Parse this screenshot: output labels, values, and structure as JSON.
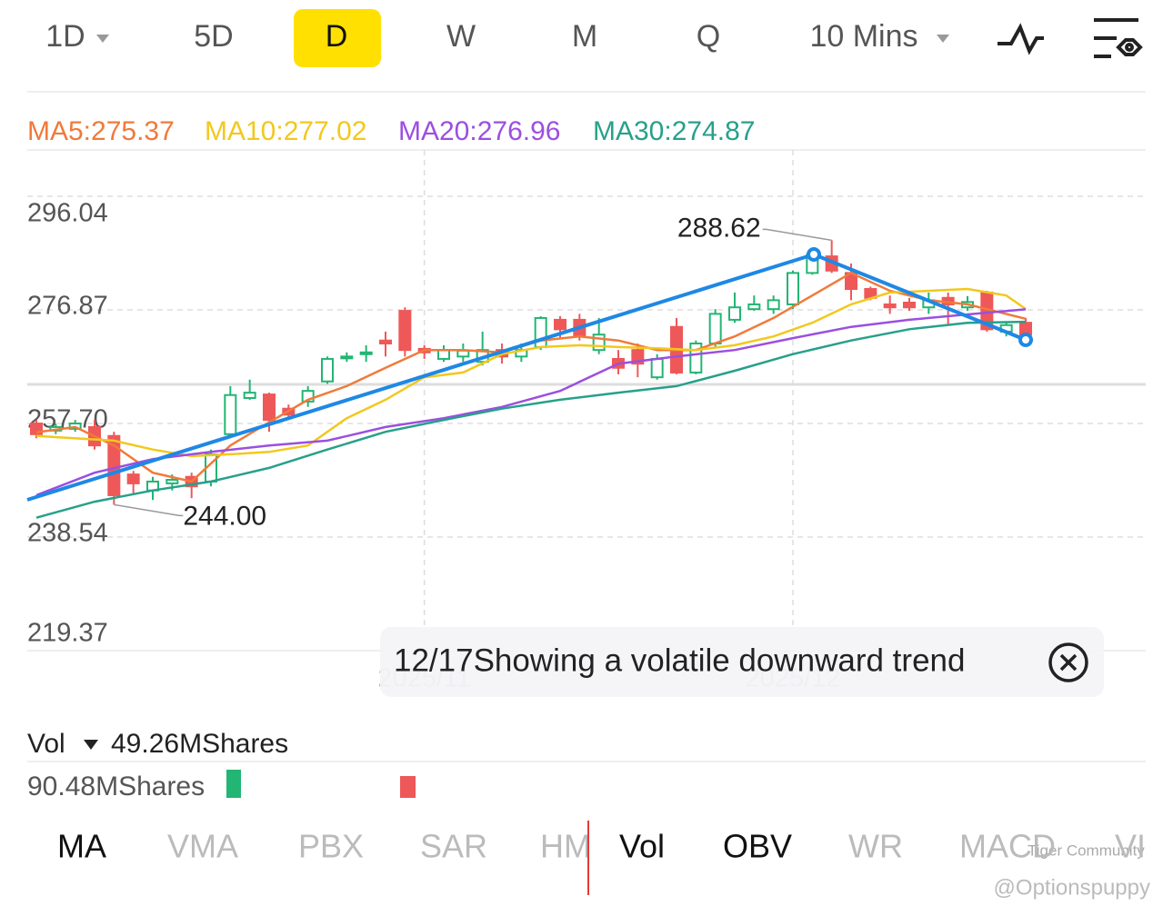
{
  "tabs": [
    "1D",
    "5D",
    "D",
    "W",
    "M",
    "Q",
    "10 Mins"
  ],
  "active_tab": "D",
  "chart_data": {
    "type": "candlestick",
    "legend": [
      "MA5:275.37",
      "MA10:277.02",
      "MA20:276.96",
      "MA30:274.87"
    ],
    "up_color": "#22b573",
    "down_color": "#ee5858",
    "ylim": [
      219.37,
      303.86
    ],
    "yticks": [
      296.04,
      276.87,
      {
        "value": 257.7,
        "label": "257.70"
      },
      238.54,
      219.37
    ],
    "categories": [
      null,
      null,
      null,
      null,
      null,
      null,
      null,
      null,
      null,
      null,
      null,
      null,
      null,
      null,
      null,
      null,
      null,
      null,
      null,
      null,
      "2025/11",
      null,
      null,
      null,
      null,
      null,
      null,
      null,
      null,
      null,
      null,
      null,
      null,
      null,
      null,
      null,
      null,
      null,
      null,
      "2025/12",
      null,
      null,
      null,
      null,
      null,
      null,
      null,
      null,
      null,
      null,
      null,
      null
    ],
    "ohlc": [
      [
        257.7,
        258.3,
        255.2,
        255.9
      ],
      [
        256.5,
        257.7,
        255.9,
        257.1
      ],
      [
        256.8,
        258.3,
        256.3,
        257.7
      ],
      [
        257.1,
        258.3,
        253.3,
        254.0
      ],
      [
        255.6,
        256.3,
        244.0,
        245.6
      ],
      [
        249.1,
        249.7,
        245.6,
        247.6
      ],
      [
        246.4,
        248.7,
        244.8,
        247.9
      ],
      [
        247.6,
        249.1,
        246.4,
        248.2
      ],
      [
        248.7,
        249.4,
        245.1,
        247.1
      ],
      [
        247.9,
        253.3,
        247.1,
        252.5
      ],
      [
        255.9,
        264.0,
        255.6,
        262.5
      ],
      [
        262.0,
        265.1,
        261.7,
        262.9
      ],
      [
        262.6,
        262.9,
        256.3,
        258.3
      ],
      [
        260.2,
        260.9,
        258.3,
        259.2
      ],
      [
        261.4,
        264.0,
        260.5,
        263.2
      ],
      [
        264.8,
        269.0,
        264.4,
        268.6
      ],
      [
        268.7,
        269.7,
        268.1,
        269.0
      ],
      [
        269.4,
        270.9,
        268.1,
        269.7
      ],
      [
        271.7,
        273.2,
        269.0,
        271.2
      ],
      [
        276.7,
        277.3,
        269.0,
        270.1
      ],
      [
        270.3,
        270.9,
        268.6,
        269.7
      ],
      [
        268.6,
        270.9,
        268.1,
        270.1
      ],
      [
        269.0,
        271.2,
        268.1,
        270.0
      ],
      [
        268.1,
        273.2,
        267.5,
        270.1
      ],
      [
        270.1,
        271.2,
        267.8,
        269.0
      ],
      [
        269.0,
        271.2,
        268.1,
        270.1
      ],
      [
        270.6,
        275.8,
        270.1,
        275.5
      ],
      [
        275.2,
        275.8,
        272.1,
        273.6
      ],
      [
        275.2,
        276.2,
        271.7,
        272.4
      ],
      [
        270.1,
        275.5,
        269.4,
        272.7
      ],
      [
        268.6,
        270.1,
        266.0,
        267.1
      ],
      [
        270.1,
        271.2,
        265.5,
        267.8
      ],
      [
        265.5,
        269.4,
        265.1,
        268.6
      ],
      [
        274.0,
        275.5,
        266.0,
        266.3
      ],
      [
        266.3,
        271.7,
        266.0,
        271.2
      ],
      [
        271.2,
        277.0,
        270.6,
        276.2
      ],
      [
        275.2,
        279.8,
        274.7,
        277.3
      ],
      [
        277.0,
        279.3,
        276.7,
        277.8
      ],
      [
        277.0,
        279.3,
        276.2,
        278.5
      ],
      [
        277.8,
        283.5,
        277.0,
        283.1
      ],
      [
        283.1,
        286.5,
        282.8,
        286.2
      ],
      [
        285.9,
        288.62,
        283.1,
        283.5
      ],
      [
        283.1,
        284.7,
        278.5,
        280.4
      ],
      [
        280.4,
        280.8,
        278.5,
        278.9
      ],
      [
        277.8,
        279.3,
        276.2,
        277.3
      ],
      [
        278.1,
        278.9,
        276.7,
        277.3
      ],
      [
        277.3,
        279.8,
        276.2,
        278.5
      ],
      [
        278.9,
        279.8,
        274.3,
        277.8
      ],
      [
        277.3,
        279.2,
        276.7,
        278.2
      ],
      [
        279.8,
        280.1,
        273.2,
        273.6
      ],
      [
        273.2,
        274.7,
        272.4,
        274.3
      ],
      [
        274.7,
        275.5,
        272.1,
        272.7
      ]
    ],
    "series": [
      {
        "name": "MA5",
        "color": "#f07a3a",
        "x": [
          0,
          2,
          4,
          6,
          8,
          10,
          12,
          14,
          16,
          18,
          20,
          22,
          24,
          26,
          28,
          30,
          32,
          34,
          36,
          38,
          40,
          42,
          44,
          46,
          48,
          51
        ],
        "values": [
          256.2,
          257.1,
          254.0,
          249.4,
          247.9,
          254.0,
          257.9,
          261.7,
          264.0,
          267.1,
          270.1,
          270.1,
          269.7,
          271.7,
          272.4,
          271.7,
          270.1,
          270.1,
          272.4,
          275.5,
          279.3,
          283.1,
          280.1,
          278.5,
          277.8,
          275.37
        ]
      },
      {
        "name": "MA10",
        "color": "#f2c81e",
        "x": [
          0,
          4,
          6,
          8,
          10,
          12,
          14,
          16,
          18,
          20,
          22,
          24,
          26,
          28,
          30,
          32,
          34,
          36,
          38,
          40,
          42,
          44,
          46,
          48,
          50,
          51
        ],
        "values": [
          255.6,
          254.8,
          253.3,
          252.2,
          252.5,
          252.9,
          254.0,
          258.6,
          261.7,
          265.5,
          266.3,
          269.4,
          270.6,
          270.9,
          270.6,
          270.4,
          270.1,
          270.9,
          272.4,
          274.7,
          277.8,
          279.8,
          280.1,
          280.4,
          279.3,
          277.02
        ]
      },
      {
        "name": "MA20",
        "color": "#9b4fe0",
        "x": [
          0,
          3,
          6,
          9,
          12,
          15,
          18,
          21,
          24,
          27,
          30,
          33,
          36,
          39,
          42,
          45,
          48,
          51
        ],
        "values": [
          245.6,
          249.4,
          251.7,
          252.9,
          254.0,
          254.8,
          257.1,
          258.6,
          260.5,
          263.2,
          267.8,
          269.0,
          270.1,
          272.1,
          274.0,
          275.2,
          276.1,
          276.96
        ]
      },
      {
        "name": "MA30",
        "color": "#27a08a",
        "x": [
          0,
          3,
          6,
          9,
          12,
          15,
          18,
          21,
          24,
          27,
          30,
          33,
          36,
          39,
          42,
          45,
          48,
          51
        ],
        "values": [
          241.8,
          244.5,
          246.4,
          247.9,
          250.2,
          253.3,
          256.3,
          258.3,
          260.2,
          261.7,
          262.9,
          264.0,
          266.6,
          269.4,
          271.7,
          273.6,
          274.7,
          274.87
        ]
      }
    ],
    "max_label": 288.62,
    "min_label": {
      "value": 244,
      "label": "244.00"
    },
    "tooltip": "12/17Showing a volatile downward trend"
  },
  "volume": {
    "label": "Vol",
    "current": "49.26MShares",
    "max": "90.48MShares"
  },
  "indicator_tabs": [
    "MA",
    "VMA",
    "PBX",
    "SAR",
    "HM",
    "Vol",
    "OBV",
    "WR",
    "MACD",
    "VI"
  ],
  "active_indicators": [
    "MA",
    "Vol",
    "OBV"
  ],
  "watermark": [
    "Tiger Community",
    "@Optionspuppy"
  ]
}
